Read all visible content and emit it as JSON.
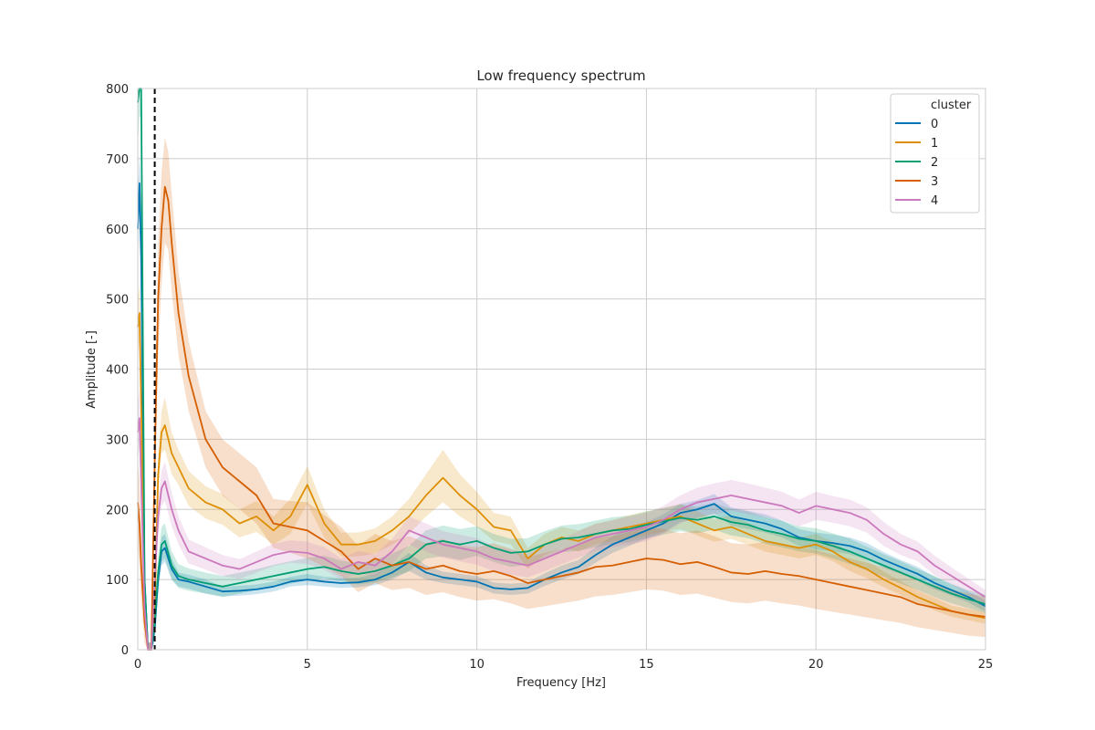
{
  "chart_data": {
    "type": "line",
    "title": "Low frequency spectrum",
    "xlabel": "Frequency [Hz]",
    "ylabel": "Amplitude [-]",
    "xlim": [
      0,
      25
    ],
    "ylim": [
      0,
      800
    ],
    "xticks": [
      0,
      5,
      10,
      15,
      20,
      25
    ],
    "yticks": [
      0,
      100,
      200,
      300,
      400,
      500,
      600,
      700,
      800
    ],
    "grid": true,
    "legend": {
      "title": "cluster",
      "placement": "top-right"
    },
    "vline": {
      "x": 0.5,
      "style": "dashed",
      "color": "#000000"
    },
    "colors": {
      "axis": "#cccccc",
      "grid": "#cccccc",
      "text": "#262626"
    },
    "series": [
      {
        "name": "0",
        "color": "#0173b2",
        "x": [
          0,
          0.05,
          0.1,
          0.2,
          0.3,
          0.4,
          0.5,
          0.6,
          0.7,
          0.8,
          1.0,
          1.2,
          1.5,
          2.0,
          2.5,
          3.0,
          3.5,
          4.0,
          4.5,
          5.0,
          5.5,
          6.0,
          6.5,
          7.0,
          7.5,
          8.0,
          8.5,
          9.0,
          9.5,
          10.0,
          10.5,
          11.0,
          11.5,
          12.0,
          12.5,
          13.0,
          13.5,
          14.0,
          14.5,
          15.0,
          15.5,
          16.0,
          16.5,
          17.0,
          17.5,
          18.0,
          18.5,
          19.0,
          19.5,
          20.0,
          20.5,
          21.0,
          21.5,
          22.0,
          22.5,
          23.0,
          23.5,
          24.0,
          24.5,
          25.0
        ],
        "values": [
          600,
          665,
          560,
          100,
          0,
          0,
          30,
          100,
          140,
          145,
          115,
          100,
          97,
          90,
          83,
          84,
          86,
          90,
          97,
          100,
          97,
          95,
          96,
          100,
          110,
          125,
          110,
          103,
          100,
          97,
          88,
          86,
          88,
          100,
          110,
          118,
          135,
          150,
          160,
          170,
          180,
          195,
          200,
          208,
          190,
          185,
          180,
          172,
          160,
          155,
          152,
          148,
          140,
          128,
          118,
          108,
          95,
          85,
          75,
          62
        ],
        "lower": [
          550,
          620,
          500,
          70,
          0,
          0,
          10,
          80,
          120,
          125,
          100,
          90,
          87,
          80,
          76,
          77,
          79,
          83,
          90,
          92,
          90,
          88,
          89,
          92,
          100,
          112,
          100,
          95,
          92,
          89,
          80,
          78,
          80,
          91,
          100,
          108,
          124,
          138,
          148,
          158,
          167,
          182,
          187,
          194,
          177,
          172,
          167,
          160,
          148,
          143,
          140,
          136,
          128,
          117,
          108,
          98,
          86,
          77,
          67,
          54
        ],
        "upper": [
          650,
          710,
          620,
          130,
          10,
          10,
          50,
          120,
          160,
          165,
          130,
          110,
          107,
          100,
          90,
          91,
          93,
          97,
          104,
          108,
          104,
          102,
          103,
          108,
          120,
          138,
          120,
          111,
          108,
          105,
          96,
          94,
          96,
          109,
          120,
          128,
          146,
          162,
          172,
          182,
          193,
          208,
          213,
          222,
          203,
          198,
          193,
          184,
          172,
          167,
          164,
          160,
          152,
          139,
          128,
          118,
          104,
          93,
          83,
          70
        ]
      },
      {
        "name": "1",
        "color": "#de8f05",
        "x": [
          0,
          0.05,
          0.1,
          0.2,
          0.3,
          0.4,
          0.5,
          0.6,
          0.7,
          0.8,
          1.0,
          1.2,
          1.5,
          2.0,
          2.5,
          3.0,
          3.5,
          4.0,
          4.5,
          5.0,
          5.5,
          6.0,
          6.5,
          7.0,
          7.5,
          8.0,
          8.5,
          9.0,
          9.5,
          10.0,
          10.5,
          11.0,
          11.5,
          12.0,
          12.5,
          13.0,
          13.5,
          14.0,
          14.5,
          15.0,
          15.5,
          16.0,
          16.5,
          17.0,
          17.5,
          18.0,
          18.5,
          19.0,
          19.5,
          20.0,
          20.5,
          21.0,
          21.5,
          22.0,
          22.5,
          23.0,
          23.5,
          24.0,
          24.5,
          25.0
        ],
        "values": [
          460,
          480,
          350,
          60,
          0,
          0,
          60,
          250,
          310,
          320,
          280,
          260,
          230,
          210,
          200,
          180,
          190,
          170,
          190,
          235,
          180,
          150,
          150,
          155,
          170,
          190,
          220,
          245,
          220,
          200,
          175,
          170,
          130,
          150,
          160,
          155,
          165,
          170,
          175,
          180,
          185,
          190,
          180,
          170,
          175,
          165,
          155,
          150,
          145,
          150,
          140,
          125,
          115,
          100,
          88,
          75,
          65,
          55,
          50,
          45
        ],
        "lower": [
          420,
          440,
          310,
          40,
          0,
          0,
          40,
          220,
          280,
          285,
          250,
          235,
          205,
          187,
          178,
          160,
          168,
          150,
          165,
          208,
          160,
          133,
          133,
          137,
          150,
          165,
          190,
          210,
          190,
          175,
          155,
          150,
          115,
          135,
          145,
          140,
          150,
          155,
          158,
          163,
          168,
          172,
          163,
          154,
          158,
          149,
          140,
          135,
          130,
          135,
          126,
          112,
          102,
          89,
          78,
          66,
          56,
          47,
          42,
          37
        ],
        "upper": [
          500,
          520,
          390,
          80,
          10,
          10,
          80,
          280,
          340,
          360,
          310,
          285,
          255,
          233,
          222,
          200,
          212,
          190,
          215,
          262,
          200,
          167,
          167,
          173,
          190,
          215,
          250,
          285,
          250,
          225,
          195,
          190,
          145,
          165,
          175,
          170,
          180,
          185,
          192,
          197,
          202,
          208,
          197,
          186,
          192,
          181,
          170,
          165,
          160,
          165,
          154,
          138,
          128,
          111,
          98,
          84,
          74,
          63,
          58,
          53
        ]
      },
      {
        "name": "2",
        "color": "#029e73",
        "x": [
          0,
          0.05,
          0.1,
          0.2,
          0.3,
          0.4,
          0.5,
          0.6,
          0.7,
          0.8,
          1.0,
          1.2,
          1.5,
          2.0,
          2.5,
          3.0,
          3.5,
          4.0,
          4.5,
          5.0,
          5.5,
          6.0,
          6.5,
          7.0,
          7.5,
          8.0,
          8.5,
          9.0,
          9.5,
          10.0,
          10.5,
          11.0,
          11.5,
          12.0,
          12.5,
          13.0,
          13.5,
          14.0,
          14.5,
          15.0,
          15.5,
          16.0,
          16.5,
          17.0,
          17.5,
          18.0,
          18.5,
          19.0,
          19.5,
          20.0,
          20.5,
          21.0,
          21.5,
          22.0,
          22.5,
          23.0,
          23.5,
          24.0,
          24.5,
          25.0
        ],
        "values": [
          780,
          800,
          800,
          100,
          0,
          0,
          40,
          110,
          150,
          155,
          120,
          105,
          100,
          95,
          90,
          95,
          100,
          105,
          110,
          115,
          118,
          112,
          108,
          112,
          120,
          130,
          150,
          155,
          150,
          155,
          145,
          138,
          140,
          150,
          158,
          160,
          165,
          170,
          172,
          178,
          183,
          188,
          185,
          190,
          182,
          178,
          170,
          165,
          158,
          155,
          148,
          140,
          130,
          120,
          110,
          100,
          90,
          80,
          72,
          65
        ],
        "lower": [
          720,
          760,
          760,
          70,
          0,
          0,
          20,
          90,
          125,
          130,
          100,
          88,
          84,
          80,
          75,
          80,
          85,
          89,
          94,
          99,
          102,
          97,
          93,
          96,
          103,
          112,
          130,
          133,
          128,
          134,
          125,
          118,
          121,
          131,
          139,
          141,
          146,
          151,
          153,
          159,
          164,
          169,
          166,
          171,
          163,
          159,
          151,
          146,
          140,
          137,
          130,
          122,
          113,
          104,
          94,
          85,
          75,
          66,
          59,
          52
        ],
        "upper": [
          800,
          800,
          800,
          130,
          10,
          10,
          60,
          130,
          175,
          180,
          140,
          122,
          116,
          110,
          105,
          110,
          115,
          121,
          126,
          131,
          134,
          127,
          123,
          128,
          137,
          148,
          170,
          177,
          172,
          176,
          165,
          158,
          159,
          169,
          177,
          179,
          184,
          189,
          191,
          197,
          202,
          207,
          204,
          209,
          201,
          197,
          189,
          184,
          176,
          173,
          166,
          158,
          147,
          136,
          126,
          115,
          105,
          94,
          85,
          78
        ]
      },
      {
        "name": "3",
        "color": "#d55e00",
        "x": [
          0,
          0.05,
          0.1,
          0.2,
          0.3,
          0.4,
          0.5,
          0.6,
          0.7,
          0.8,
          0.9,
          1.0,
          1.2,
          1.5,
          2.0,
          2.5,
          3.0,
          3.5,
          4.0,
          4.5,
          5.0,
          5.5,
          6.0,
          6.5,
          7.0,
          7.5,
          8.0,
          8.5,
          9.0,
          9.5,
          10.0,
          10.5,
          11.0,
          11.5,
          12.0,
          12.5,
          13.0,
          13.5,
          14.0,
          14.5,
          15.0,
          15.5,
          16.0,
          16.5,
          17.0,
          17.5,
          18.0,
          18.5,
          19.0,
          19.5,
          20.0,
          20.5,
          21.0,
          21.5,
          22.0,
          22.5,
          23.0,
          23.5,
          24.0,
          24.5,
          25.0
        ],
        "values": [
          210,
          180,
          120,
          40,
          0,
          0,
          270,
          500,
          600,
          660,
          640,
          580,
          480,
          390,
          300,
          260,
          240,
          220,
          180,
          175,
          170,
          155,
          140,
          115,
          130,
          120,
          125,
          115,
          120,
          112,
          108,
          112,
          105,
          95,
          100,
          105,
          110,
          118,
          120,
          125,
          130,
          128,
          122,
          125,
          118,
          110,
          108,
          112,
          108,
          105,
          100,
          95,
          90,
          85,
          80,
          75,
          65,
          60,
          55,
          50,
          47
        ],
        "lower": [
          150,
          120,
          70,
          10,
          0,
          0,
          200,
          420,
          520,
          580,
          570,
          510,
          420,
          340,
          260,
          220,
          200,
          180,
          145,
          138,
          130,
          118,
          105,
          82,
          95,
          85,
          88,
          78,
          82,
          75,
          70,
          72,
          66,
          58,
          62,
          66,
          70,
          76,
          78,
          82,
          86,
          84,
          78,
          80,
          74,
          68,
          66,
          70,
          66,
          63,
          58,
          54,
          50,
          46,
          42,
          38,
          32,
          28,
          24,
          20,
          18
        ],
        "upper": [
          270,
          240,
          170,
          70,
          10,
          10,
          340,
          580,
          680,
          730,
          710,
          650,
          540,
          440,
          340,
          300,
          280,
          260,
          215,
          212,
          210,
          192,
          175,
          148,
          165,
          155,
          162,
          152,
          158,
          149,
          146,
          152,
          144,
          132,
          138,
          144,
          150,
          160,
          162,
          168,
          174,
          172,
          166,
          170,
          162,
          152,
          150,
          154,
          150,
          147,
          142,
          136,
          130,
          124,
          118,
          112,
          98,
          92,
          86,
          80,
          76
        ]
      },
      {
        "name": "4",
        "color": "#cc78bc",
        "x": [
          0,
          0.05,
          0.1,
          0.2,
          0.3,
          0.4,
          0.5,
          0.6,
          0.7,
          0.8,
          1.0,
          1.2,
          1.5,
          2.0,
          2.5,
          3.0,
          3.5,
          4.0,
          4.5,
          5.0,
          5.5,
          6.0,
          6.5,
          7.0,
          7.5,
          8.0,
          8.5,
          9.0,
          9.5,
          10.0,
          10.5,
          11.0,
          11.5,
          12.0,
          12.5,
          13.0,
          13.5,
          14.0,
          14.5,
          15.0,
          15.5,
          16.0,
          16.5,
          17.0,
          17.5,
          18.0,
          18.5,
          19.0,
          19.5,
          20.0,
          20.5,
          21.0,
          21.5,
          22.0,
          22.5,
          23.0,
          23.5,
          24.0,
          24.5,
          25.0
        ],
        "values": [
          310,
          330,
          240,
          60,
          0,
          0,
          100,
          190,
          230,
          240,
          200,
          170,
          140,
          130,
          120,
          115,
          125,
          135,
          140,
          138,
          130,
          115,
          125,
          120,
          140,
          170,
          160,
          150,
          145,
          140,
          130,
          125,
          120,
          130,
          140,
          150,
          160,
          165,
          170,
          175,
          185,
          200,
          210,
          215,
          220,
          215,
          210,
          205,
          195,
          205,
          200,
          195,
          185,
          165,
          150,
          140,
          120,
          105,
          90,
          75
        ],
        "lower": [
          270,
          290,
          200,
          40,
          0,
          0,
          80,
          165,
          205,
          212,
          176,
          150,
          123,
          114,
          105,
          101,
          110,
          119,
          124,
          122,
          114,
          100,
          109,
          104,
          122,
          150,
          140,
          131,
          126,
          121,
          112,
          107,
          103,
          112,
          122,
          131,
          141,
          146,
          150,
          155,
          165,
          180,
          189,
          193,
          198,
          193,
          189,
          185,
          176,
          185,
          181,
          176,
          167,
          148,
          135,
          126,
          106,
          93,
          79,
          65
        ],
        "upper": [
          350,
          370,
          280,
          80,
          10,
          10,
          120,
          215,
          255,
          268,
          224,
          190,
          157,
          146,
          135,
          129,
          140,
          151,
          156,
          154,
          146,
          130,
          141,
          136,
          158,
          190,
          180,
          169,
          164,
          159,
          148,
          143,
          137,
          148,
          158,
          169,
          179,
          184,
          190,
          195,
          205,
          220,
          231,
          237,
          242,
          237,
          231,
          225,
          214,
          225,
          219,
          214,
          203,
          182,
          165,
          154,
          134,
          117,
          101,
          85
        ]
      }
    ]
  }
}
